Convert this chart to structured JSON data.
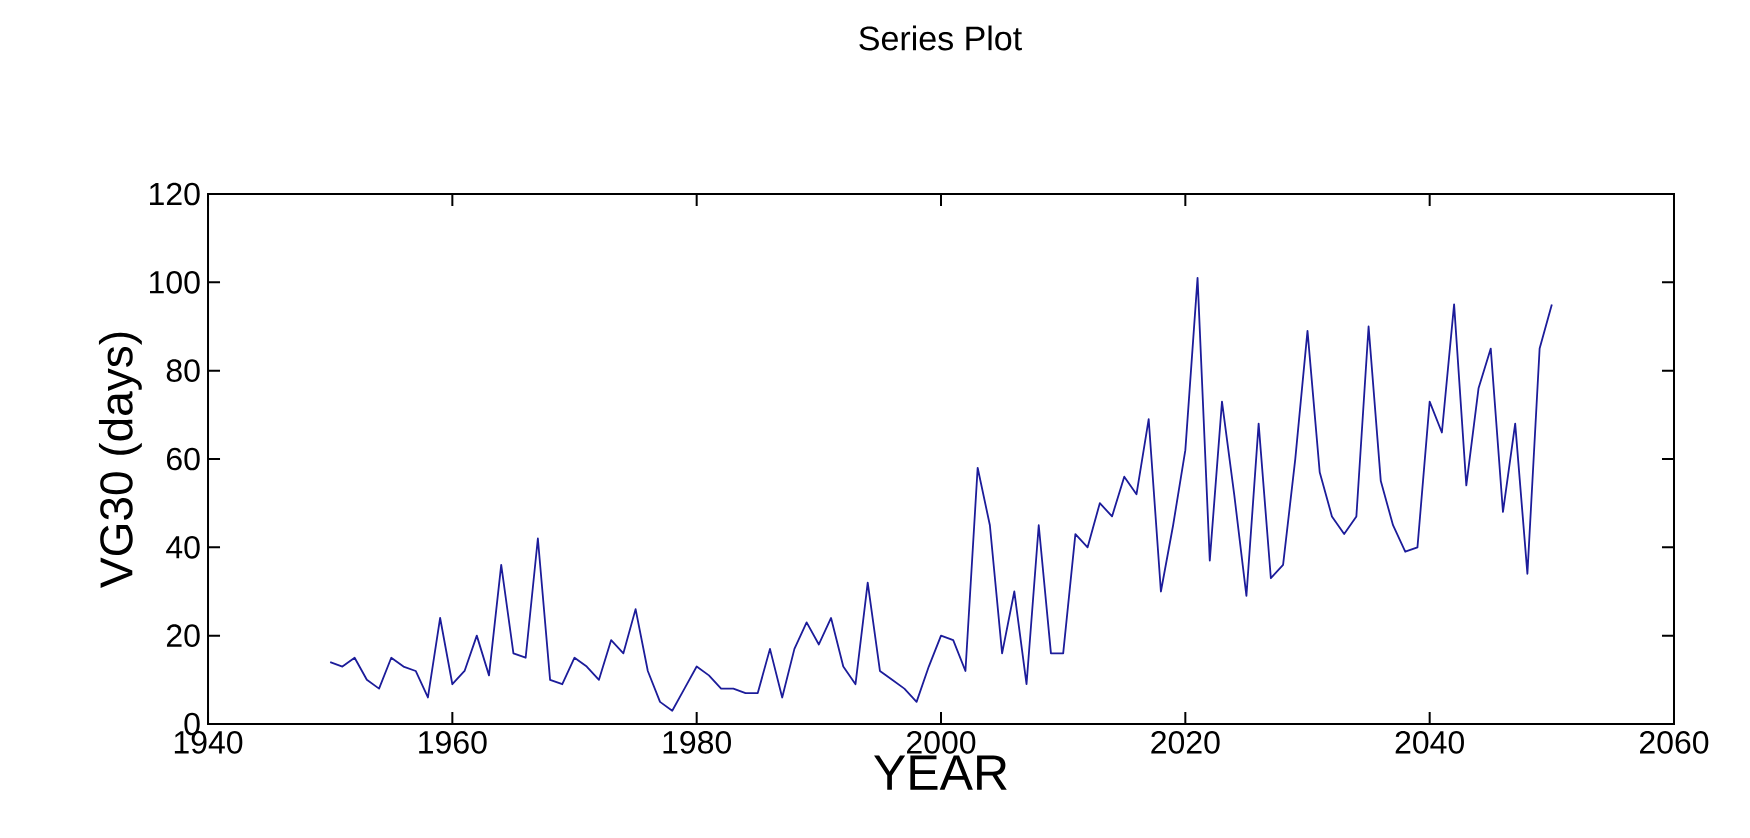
{
  "chart_data": {
    "type": "line",
    "title": "Series Plot",
    "xlabel": "YEAR",
    "ylabel": "VG30 (days)",
    "x": [
      1950,
      1951,
      1952,
      1953,
      1954,
      1955,
      1956,
      1957,
      1958,
      1959,
      1960,
      1961,
      1962,
      1963,
      1964,
      1965,
      1966,
      1967,
      1968,
      1969,
      1970,
      1971,
      1972,
      1973,
      1974,
      1975,
      1976,
      1977,
      1978,
      1979,
      1980,
      1981,
      1982,
      1983,
      1984,
      1985,
      1986,
      1987,
      1988,
      1989,
      1990,
      1991,
      1992,
      1993,
      1994,
      1995,
      1996,
      1997,
      1998,
      1999,
      2000,
      2001,
      2002,
      2003,
      2004,
      2005,
      2006,
      2007,
      2008,
      2009,
      2010,
      2011,
      2012,
      2013,
      2014,
      2015,
      2016,
      2017,
      2018,
      2019,
      2020,
      2021,
      2022,
      2023,
      2024,
      2025,
      2026,
      2027,
      2028,
      2029,
      2030,
      2031,
      2032,
      2033,
      2034,
      2035,
      2036,
      2037,
      2038,
      2039,
      2040,
      2041,
      2042,
      2043,
      2044,
      2045,
      2046,
      2047,
      2048,
      2049,
      2050
    ],
    "series": [
      {
        "color": "#1c1c9a",
        "values": [
          14,
          13,
          15,
          10,
          8,
          15,
          13,
          12,
          6,
          24,
          9,
          12,
          20,
          11,
          36,
          16,
          15,
          42,
          10,
          9,
          15,
          13,
          10,
          19,
          16,
          26,
          12,
          5,
          3,
          8,
          13,
          11,
          8,
          8,
          7,
          7,
          17,
          6,
          17,
          23,
          18,
          24,
          13,
          9,
          32,
          12,
          10,
          8,
          5,
          13,
          20,
          19,
          12,
          58,
          45,
          16,
          30,
          9,
          45,
          16,
          16,
          43,
          40,
          50,
          47,
          56,
          52,
          69,
          30,
          45,
          62,
          101,
          37,
          73,
          52,
          29,
          68,
          33,
          36,
          60,
          89,
          57,
          47,
          43,
          47,
          90,
          55,
          45,
          39,
          40,
          73,
          66,
          95,
          54,
          76,
          85,
          48,
          68,
          34,
          85,
          95
        ]
      }
    ],
    "xlim": [
      1940,
      2060
    ],
    "ylim": [
      0,
      120
    ],
    "xticks": [
      1940,
      1960,
      1980,
      2000,
      2020,
      2040,
      2060
    ],
    "yticks": [
      0,
      20,
      40,
      60,
      80,
      100,
      120
    ],
    "line_style": "solid",
    "marker": "none"
  }
}
